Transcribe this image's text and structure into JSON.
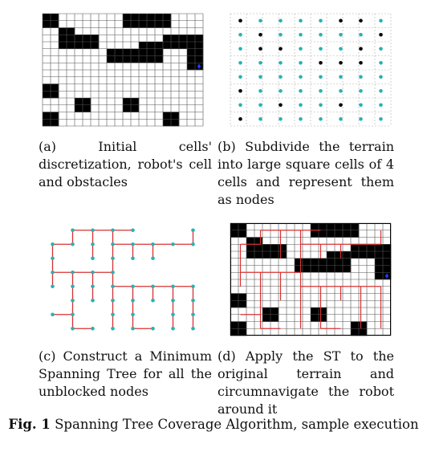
{
  "figure": {
    "label": "Fig. 1",
    "title": "Spanning Tree Coverage Algorithm, sample execution"
  },
  "panels": {
    "a": {
      "caption": "(a) Initial cells' discretization, robot's cell and obstacles"
    },
    "b": {
      "caption": "(b) Subdivide the terrain into large square cells of 4 cells and represent them as nodes"
    },
    "c": {
      "caption": "(c) Construct a Minimum Spanning Tree for all the unblocked nodes"
    },
    "d": {
      "caption": "(d) Apply the ST to the original terrain and circumnavigate the robot around it"
    }
  },
  "colors": {
    "obstacle": "#000000",
    "grid": "#555555",
    "node": "#26b3b3",
    "blocked_node": "#000000",
    "tree_edge": "#d93030",
    "robot": "#1a3cff"
  },
  "grid": {
    "cols": 20,
    "rows": 16,
    "obstacles": [
      [
        0,
        0
      ],
      [
        1,
        0
      ],
      [
        10,
        0
      ],
      [
        11,
        0
      ],
      [
        12,
        0
      ],
      [
        13,
        0
      ],
      [
        14,
        0
      ],
      [
        15,
        0
      ],
      [
        0,
        1
      ],
      [
        1,
        1
      ],
      [
        10,
        1
      ],
      [
        11,
        1
      ],
      [
        12,
        1
      ],
      [
        13,
        1
      ],
      [
        14,
        1
      ],
      [
        15,
        1
      ],
      [
        2,
        2
      ],
      [
        3,
        2
      ],
      [
        2,
        3
      ],
      [
        3,
        3
      ],
      [
        4,
        3
      ],
      [
        5,
        3
      ],
      [
        6,
        3
      ],
      [
        15,
        3
      ],
      [
        16,
        3
      ],
      [
        17,
        3
      ],
      [
        18,
        3
      ],
      [
        19,
        3
      ],
      [
        2,
        4
      ],
      [
        3,
        4
      ],
      [
        4,
        4
      ],
      [
        5,
        4
      ],
      [
        6,
        4
      ],
      [
        12,
        4
      ],
      [
        13,
        4
      ],
      [
        14,
        4
      ],
      [
        15,
        4
      ],
      [
        16,
        4
      ],
      [
        17,
        4
      ],
      [
        18,
        4
      ],
      [
        19,
        4
      ],
      [
        8,
        5
      ],
      [
        9,
        5
      ],
      [
        10,
        5
      ],
      [
        11,
        5
      ],
      [
        12,
        5
      ],
      [
        13,
        5
      ],
      [
        14,
        5
      ],
      [
        18,
        5
      ],
      [
        19,
        5
      ],
      [
        8,
        6
      ],
      [
        9,
        6
      ],
      [
        10,
        6
      ],
      [
        11,
        6
      ],
      [
        12,
        6
      ],
      [
        13,
        6
      ],
      [
        14,
        6
      ],
      [
        18,
        6
      ],
      [
        19,
        6
      ],
      [
        18,
        7
      ],
      [
        19,
        7
      ],
      [
        0,
        10
      ],
      [
        1,
        10
      ],
      [
        0,
        11
      ],
      [
        1,
        11
      ],
      [
        4,
        12
      ],
      [
        5,
        12
      ],
      [
        10,
        12
      ],
      [
        11,
        12
      ],
      [
        4,
        13
      ],
      [
        5,
        13
      ],
      [
        10,
        13
      ],
      [
        11,
        13
      ],
      [
        0,
        14
      ],
      [
        1,
        14
      ],
      [
        15,
        14
      ],
      [
        16,
        14
      ],
      [
        0,
        15
      ],
      [
        1,
        15
      ],
      [
        15,
        15
      ],
      [
        16,
        15
      ]
    ],
    "robot_cell": [
      19,
      7
    ]
  },
  "nodes": {
    "cols": 8,
    "rows": 8,
    "blocked": [
      [
        0,
        0
      ],
      [
        5,
        0
      ],
      [
        6,
        0
      ],
      [
        1,
        1
      ],
      [
        7,
        1
      ],
      [
        1,
        2
      ],
      [
        2,
        2
      ],
      [
        6,
        2
      ],
      [
        4,
        3
      ],
      [
        5,
        3
      ],
      [
        6,
        3
      ],
      [
        0,
        5
      ],
      [
        2,
        6
      ],
      [
        5,
        6
      ],
      [
        0,
        7
      ]
    ]
  },
  "tree": {
    "edges": [
      [
        [
          1,
          0
        ],
        [
          2,
          0
        ]
      ],
      [
        [
          2,
          0
        ],
        [
          3,
          0
        ]
      ],
      [
        [
          3,
          0
        ],
        [
          4,
          0
        ]
      ],
      [
        [
          3,
          0
        ],
        [
          3,
          1
        ]
      ],
      [
        [
          3,
          1
        ],
        [
          4,
          1
        ]
      ],
      [
        [
          4,
          1
        ],
        [
          5,
          1
        ]
      ],
      [
        [
          5,
          1
        ],
        [
          6,
          1
        ]
      ],
      [
        [
          6,
          1
        ],
        [
          7,
          1
        ]
      ],
      [
        [
          7,
          0
        ],
        [
          7,
          1
        ]
      ],
      [
        [
          1,
          0
        ],
        [
          1,
          1
        ]
      ],
      [
        [
          1,
          1
        ],
        [
          0,
          1
        ]
      ],
      [
        [
          0,
          1
        ],
        [
          0,
          2
        ]
      ],
      [
        [
          0,
          2
        ],
        [
          0,
          3
        ]
      ],
      [
        [
          0,
          3
        ],
        [
          1,
          3
        ]
      ],
      [
        [
          1,
          3
        ],
        [
          2,
          3
        ]
      ],
      [
        [
          2,
          3
        ],
        [
          3,
          3
        ]
      ],
      [
        [
          2,
          0
        ],
        [
          2,
          1
        ]
      ],
      [
        [
          2,
          1
        ],
        [
          2,
          2
        ]
      ],
      [
        [
          3,
          1
        ],
        [
          3,
          2
        ]
      ],
      [
        [
          3,
          2
        ],
        [
          3,
          3
        ]
      ],
      [
        [
          3,
          3
        ],
        [
          3,
          4
        ]
      ],
      [
        [
          3,
          4
        ],
        [
          4,
          4
        ]
      ],
      [
        [
          4,
          4
        ],
        [
          5,
          4
        ]
      ],
      [
        [
          5,
          4
        ],
        [
          6,
          4
        ]
      ],
      [
        [
          6,
          4
        ],
        [
          7,
          4
        ]
      ],
      [
        [
          4,
          2
        ],
        [
          4,
          1
        ]
      ],
      [
        [
          5,
          2
        ],
        [
          5,
          1
        ]
      ],
      [
        [
          3,
          4
        ],
        [
          3,
          5
        ]
      ],
      [
        [
          3,
          5
        ],
        [
          3,
          6
        ]
      ],
      [
        [
          3,
          6
        ],
        [
          3,
          7
        ]
      ],
      [
        [
          1,
          3
        ],
        [
          1,
          4
        ]
      ],
      [
        [
          1,
          4
        ],
        [
          1,
          5
        ]
      ],
      [
        [
          1,
          5
        ],
        [
          1,
          6
        ]
      ],
      [
        [
          1,
          6
        ],
        [
          0,
          6
        ]
      ],
      [
        [
          1,
          6
        ],
        [
          1,
          7
        ]
      ],
      [
        [
          1,
          7
        ],
        [
          2,
          7
        ]
      ],
      [
        [
          2,
          3
        ],
        [
          2,
          4
        ]
      ],
      [
        [
          2,
          4
        ],
        [
          2,
          5
        ]
      ],
      [
        [
          0,
          3
        ],
        [
          0,
          4
        ]
      ],
      [
        [
          4,
          4
        ],
        [
          4,
          5
        ]
      ],
      [
        [
          4,
          5
        ],
        [
          4,
          6
        ]
      ],
      [
        [
          4,
          6
        ],
        [
          4,
          7
        ]
      ],
      [
        [
          4,
          7
        ],
        [
          5,
          7
        ]
      ],
      [
        [
          6,
          4
        ],
        [
          6,
          5
        ]
      ],
      [
        [
          6,
          5
        ],
        [
          6,
          6
        ]
      ],
      [
        [
          6,
          6
        ],
        [
          6,
          7
        ]
      ],
      [
        [
          7,
          4
        ],
        [
          7,
          5
        ]
      ],
      [
        [
          7,
          5
        ],
        [
          7,
          6
        ]
      ],
      [
        [
          7,
          6
        ],
        [
          7,
          7
        ]
      ],
      [
        [
          5,
          4
        ],
        [
          5,
          5
        ]
      ]
    ]
  }
}
